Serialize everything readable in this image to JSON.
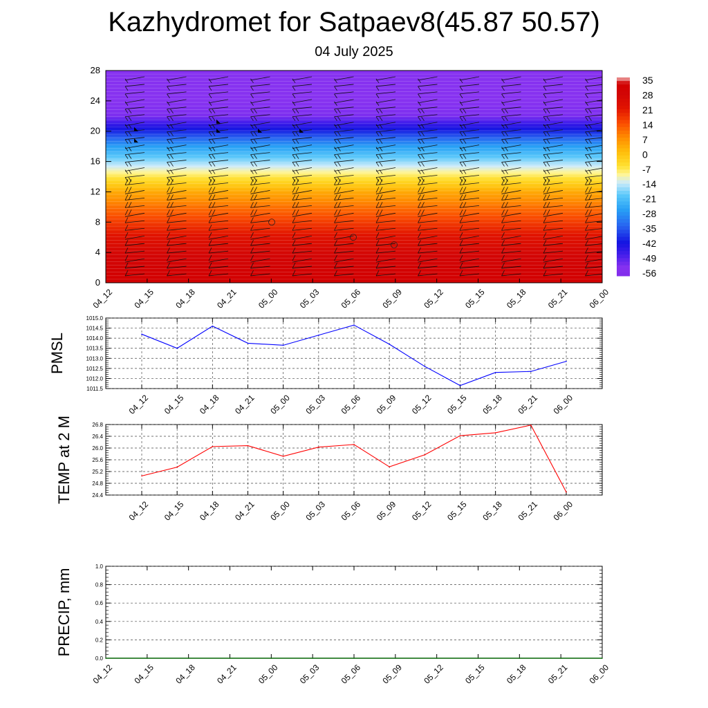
{
  "title": "Kazhydromet for Satpaev8(45.87 50.57)",
  "subtitle": "04 July 2025",
  "colorbar": {
    "labels": [
      "35",
      "28",
      "21",
      "14",
      "7",
      "0",
      "-7",
      "-14",
      "-21",
      "-28",
      "-35",
      "-42",
      "-49",
      "-56"
    ]
  },
  "chart_data": [
    {
      "type": "heatmap",
      "name_hint": "upper-level temperature with wind barbs",
      "x_tick_labels": [
        "04_12",
        "04_15",
        "04_18",
        "04_21",
        "05_00",
        "05_03",
        "05_06",
        "05_09",
        "05_12",
        "05_15",
        "05_18",
        "05_21",
        "06_00"
      ],
      "y_tick_labels": [
        "0",
        "4",
        "8",
        "12",
        "16",
        "20",
        "24",
        "28"
      ],
      "ylim": [
        0,
        28
      ],
      "levels": [
        0,
        2,
        4,
        6,
        8,
        10,
        12,
        14,
        16,
        18,
        20,
        22,
        24,
        26,
        28
      ],
      "temperature_by_level": [
        33,
        30,
        27,
        22,
        16,
        10,
        3,
        -8,
        -18,
        -28,
        -42,
        -55,
        -56,
        -56,
        -56
      ]
    },
    {
      "type": "line",
      "ylabel": "PMSL",
      "x": [
        "04_12",
        "04_15",
        "04_18",
        "04_21",
        "05_00",
        "05_03",
        "05_06",
        "05_09",
        "05_12",
        "05_15",
        "05_18",
        "05_21",
        "06_00"
      ],
      "values": [
        1014.2,
        1013.5,
        1014.6,
        1013.75,
        1013.65,
        1014.15,
        1014.65,
        1013.7,
        1012.6,
        1011.65,
        1012.3,
        1012.35,
        1012.85
      ],
      "ylim": [
        1011.5,
        1015.0
      ],
      "y_tick_labels": [
        "1011.5",
        "1012.0",
        "1012.5",
        "1013.0",
        "1013.5",
        "1014.0",
        "1014.5",
        "1015.0"
      ],
      "color": "#0000ff"
    },
    {
      "type": "line",
      "ylabel": "TEMP at 2 M",
      "x": [
        "04_12",
        "04_15",
        "04_18",
        "04_21",
        "05_00",
        "05_03",
        "05_06",
        "05_09",
        "05_12",
        "05_15",
        "05_18",
        "05_21",
        "06_00"
      ],
      "values": [
        25.05,
        25.35,
        26.05,
        26.08,
        25.72,
        26.03,
        26.12,
        25.36,
        25.77,
        26.42,
        26.52,
        26.78,
        24.5
      ],
      "ylim": [
        24.4,
        26.8
      ],
      "y_tick_labels": [
        "24.4",
        "24.8",
        "25.2",
        "25.6",
        "26.0",
        "26.4",
        "26.8"
      ],
      "color": "#ff0000"
    },
    {
      "type": "line",
      "ylabel": "PRECIP, mm",
      "x": [
        "04_12",
        "04_15",
        "04_18",
        "04_21",
        "05_00",
        "05_03",
        "05_06",
        "05_09",
        "05_12",
        "05_15",
        "05_18",
        "05_21",
        "06_00"
      ],
      "values": [
        0,
        0,
        0,
        0,
        0,
        0,
        0,
        0,
        0,
        0,
        0,
        0,
        0
      ],
      "ylim": [
        0.0,
        1.0
      ],
      "y_tick_labels": [
        "0.0",
        "0.2",
        "0.4",
        "0.6",
        "0.8",
        "1.0"
      ],
      "color": "#006400"
    }
  ]
}
